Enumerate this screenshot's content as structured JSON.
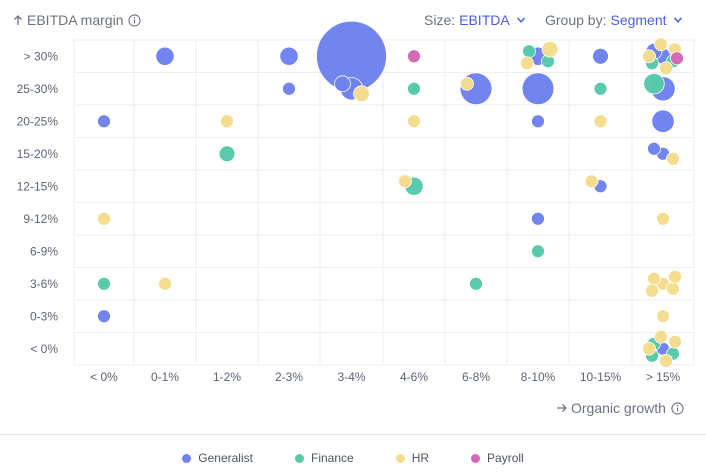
{
  "header": {
    "y_axis_title": "EBITDA margin",
    "size_caption": "Size:",
    "size_value": "EBITDA",
    "group_caption": "Group by:",
    "group_value": "Segment",
    "x_axis_title": "Organic growth"
  },
  "legend": [
    {
      "label": "Generalist",
      "color": "#6f83ee"
    },
    {
      "label": "Finance",
      "color": "#58c9aa"
    },
    {
      "label": "HR",
      "color": "#f4dc8c"
    },
    {
      "label": "Payroll",
      "color": "#d468b4"
    }
  ],
  "chart_data": {
    "type": "scatter",
    "title": "",
    "xlabel": "Organic growth",
    "ylabel": "EBITDA margin",
    "x_categories": [
      "< 0%",
      "0-1%",
      "1-2%",
      "2-3%",
      "3-4%",
      "4-6%",
      "6-8%",
      "8-10%",
      "10-15%",
      "> 15%"
    ],
    "y_categories": [
      "< 0%",
      "0-3%",
      "3-6%",
      "6-9%",
      "9-12%",
      "12-15%",
      "15-20%",
      "20-25%",
      "25-30%",
      "> 30%"
    ],
    "size_by": "EBITDA",
    "group_by": "Segment",
    "series": [
      {
        "name": "Generalist",
        "color": "#6f83ee",
        "points": [
          {
            "x": "0-1%",
            "y": "> 30%",
            "size": 2
          },
          {
            "x": "2-3%",
            "y": "> 30%",
            "size": 2
          },
          {
            "x": "3-4%",
            "y": "> 30%",
            "size": 40
          },
          {
            "x": "8-10%",
            "y": "> 30%",
            "size": 2
          },
          {
            "x": "10-15%",
            "y": "> 30%",
            "size": 1.5
          },
          {
            "x": "> 15%",
            "y": "> 30%",
            "size": 1.5
          },
          {
            "x": "> 15%",
            "y": "> 30%",
            "size": 1.5
          },
          {
            "x": "2-3%",
            "y": "25-30%",
            "size": 1
          },
          {
            "x": "3-4%",
            "y": "25-30%",
            "size": 3
          },
          {
            "x": "3-4%",
            "y": "25-30%",
            "size": 1.5
          },
          {
            "x": "6-8%",
            "y": "25-30%",
            "size": 6
          },
          {
            "x": "8-10%",
            "y": "25-30%",
            "size": 6
          },
          {
            "x": "> 15%",
            "y": "25-30%",
            "size": 3.5
          },
          {
            "x": "< 0%",
            "y": "20-25%",
            "size": 1
          },
          {
            "x": "8-10%",
            "y": "20-25%",
            "size": 1
          },
          {
            "x": "> 15%",
            "y": "20-25%",
            "size": 3
          },
          {
            "x": "> 15%",
            "y": "15-20%",
            "size": 1
          },
          {
            "x": "> 15%",
            "y": "15-20%",
            "size": 1
          },
          {
            "x": "10-15%",
            "y": "12-15%",
            "size": 1
          },
          {
            "x": "8-10%",
            "y": "9-12%",
            "size": 1
          },
          {
            "x": "< 0%",
            "y": "0-3%",
            "size": 1
          },
          {
            "x": "> 15%",
            "y": "< 0%",
            "size": 1
          }
        ]
      },
      {
        "name": "Finance",
        "color": "#58c9aa",
        "points": [
          {
            "x": "8-10%",
            "y": "> 30%",
            "size": 1
          },
          {
            "x": "> 15%",
            "y": "> 30%",
            "size": 1
          },
          {
            "x": "> 15%",
            "y": "> 30%",
            "size": 1
          },
          {
            "x": "8-10%",
            "y": "> 30%",
            "size": 1
          },
          {
            "x": "4-6%",
            "y": "25-30%",
            "size": 1
          },
          {
            "x": "10-15%",
            "y": "25-30%",
            "size": 1
          },
          {
            "x": "> 15%",
            "y": "25-30%",
            "size": 2.5
          },
          {
            "x": "1-2%",
            "y": "15-20%",
            "size": 1.5
          },
          {
            "x": "4-6%",
            "y": "12-15%",
            "size": 2
          },
          {
            "x": "8-10%",
            "y": "6-9%",
            "size": 1
          },
          {
            "x": "< 0%",
            "y": "3-6%",
            "size": 1
          },
          {
            "x": "6-8%",
            "y": "3-6%",
            "size": 1
          },
          {
            "x": "> 15%",
            "y": "< 0%",
            "size": 1
          },
          {
            "x": "> 15%",
            "y": "< 0%",
            "size": 1
          },
          {
            "x": "> 15%",
            "y": "< 0%",
            "size": 1
          }
        ]
      },
      {
        "name": "HR",
        "color": "#f4dc8c",
        "points": [
          {
            "x": "8-10%",
            "y": "> 30%",
            "size": 1
          },
          {
            "x": "8-10%",
            "y": "> 30%",
            "size": 1.5
          },
          {
            "x": "> 15%",
            "y": "> 30%",
            "size": 1
          },
          {
            "x": "> 15%",
            "y": "> 30%",
            "size": 1
          },
          {
            "x": "> 15%",
            "y": "> 30%",
            "size": 1
          },
          {
            "x": "> 15%",
            "y": "> 30%",
            "size": 1
          },
          {
            "x": "6-8%",
            "y": "25-30%",
            "size": 1
          },
          {
            "x": "3-4%",
            "y": "25-30%",
            "size": 1.5
          },
          {
            "x": "1-2%",
            "y": "20-25%",
            "size": 1
          },
          {
            "x": "4-6%",
            "y": "20-25%",
            "size": 1
          },
          {
            "x": "10-15%",
            "y": "20-25%",
            "size": 1
          },
          {
            "x": "> 15%",
            "y": "15-20%",
            "size": 1
          },
          {
            "x": "4-6%",
            "y": "12-15%",
            "size": 1
          },
          {
            "x": "10-15%",
            "y": "12-15%",
            "size": 1
          },
          {
            "x": "< 0%",
            "y": "9-12%",
            "size": 1
          },
          {
            "x": "> 15%",
            "y": "9-12%",
            "size": 1
          },
          {
            "x": "0-1%",
            "y": "3-6%",
            "size": 1
          },
          {
            "x": "> 15%",
            "y": "3-6%",
            "size": 1
          },
          {
            "x": "> 15%",
            "y": "3-6%",
            "size": 1
          },
          {
            "x": "> 15%",
            "y": "3-6%",
            "size": 1
          },
          {
            "x": "> 15%",
            "y": "3-6%",
            "size": 1
          },
          {
            "x": "> 15%",
            "y": "3-6%",
            "size": 1
          },
          {
            "x": "> 15%",
            "y": "0-3%",
            "size": 1
          },
          {
            "x": "> 15%",
            "y": "< 0%",
            "size": 1
          },
          {
            "x": "> 15%",
            "y": "< 0%",
            "size": 1
          },
          {
            "x": "> 15%",
            "y": "< 0%",
            "size": 1
          },
          {
            "x": "> 15%",
            "y": "< 0%",
            "size": 1
          }
        ]
      },
      {
        "name": "Payroll",
        "color": "#d468b4",
        "points": [
          {
            "x": "4-6%",
            "y": "> 30%",
            "size": 1
          },
          {
            "x": "> 15%",
            "y": "> 30%",
            "size": 1
          }
        ]
      }
    ]
  }
}
